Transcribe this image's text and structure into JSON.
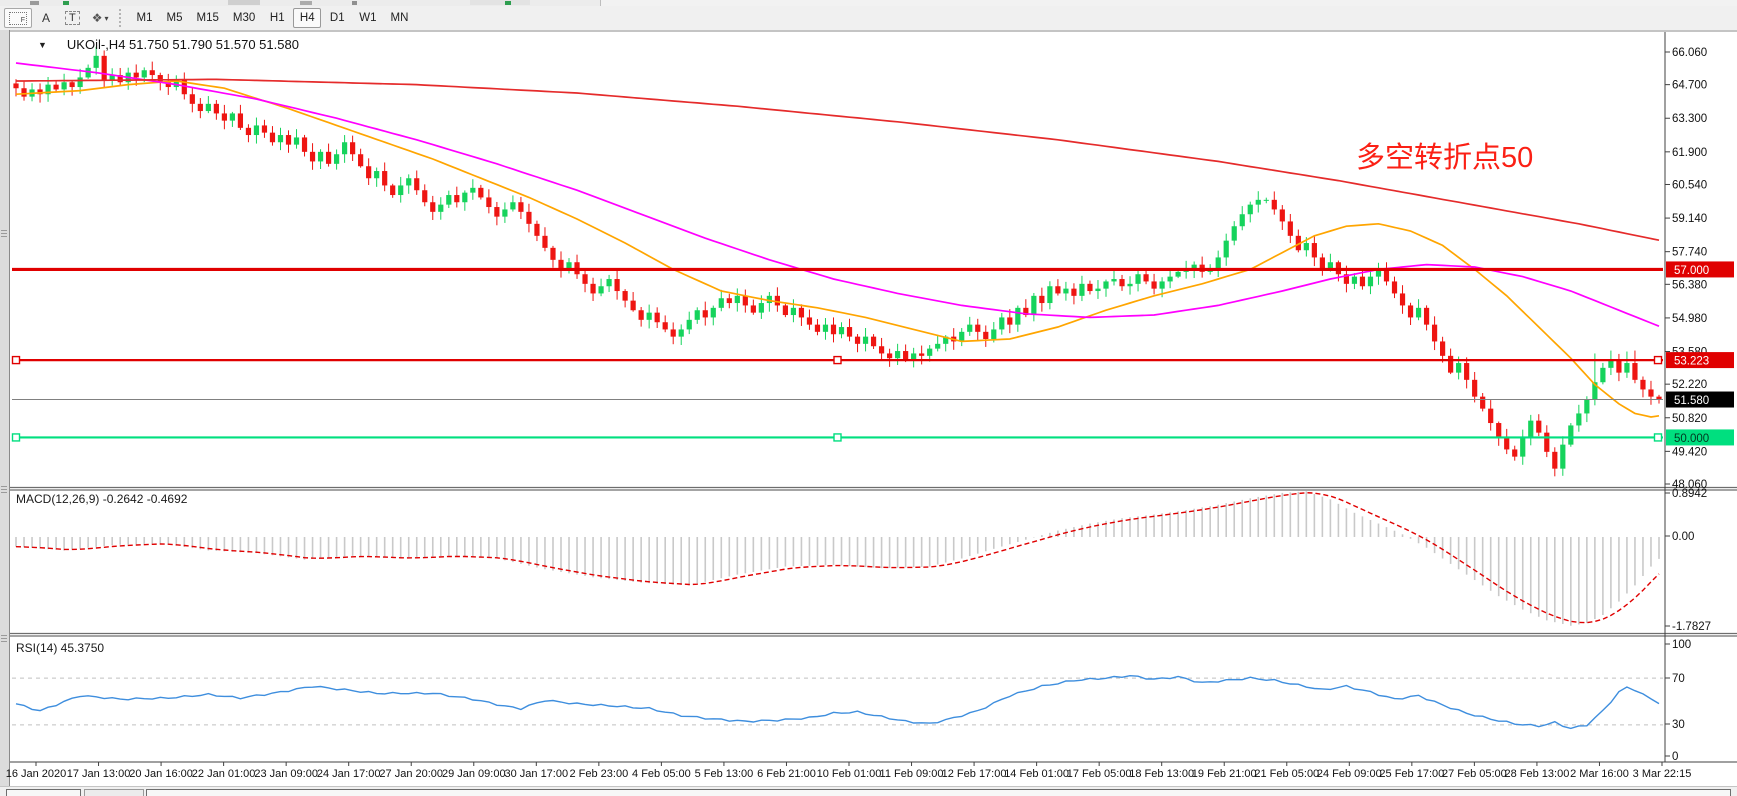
{
  "toolbar": {
    "icon_buttons": [
      {
        "name": "indicator-grid-button",
        "glyph": "F"
      },
      {
        "name": "text-label-button",
        "glyph": "A"
      },
      {
        "name": "text-box-button",
        "glyph": "T"
      },
      {
        "name": "arrange-objects-button",
        "glyph": "❖"
      }
    ],
    "dropdown_caret": "▾",
    "timeframes": [
      "M1",
      "M5",
      "M15",
      "M30",
      "H1",
      "H4",
      "D1",
      "W1",
      "MN"
    ],
    "active_timeframe": "H4"
  },
  "main_chart": {
    "collapse_glyph": "▼",
    "title": "UKOil-,H4  51.750 51.790 51.570 51.580",
    "symbol": "UKOil-",
    "period": "H4",
    "annotation": {
      "text": "多空转折点50",
      "color": "#fb2015"
    }
  },
  "indicators": {
    "macd_label": "MACD(12,26,9) -0.2642 -0.4692",
    "rsi_label": "RSI(14) 45.3750"
  },
  "chart_data": [
    {
      "type": "candlestick",
      "symbol": "UKOil-",
      "timeframe": "H4",
      "current_ohlc": {
        "open": 51.75,
        "high": 51.79,
        "low": 51.57,
        "close": 51.58
      },
      "colors": {
        "up": "#16d35c",
        "down": "#ee1512",
        "ma_fast": "#ffa500",
        "ma_mid": "#ff00ff",
        "ma_slow": "#e52b2b",
        "line_57": "#e00000",
        "line_53223": "#e00000",
        "bid_line": "#808080",
        "line_50": "#00df7f"
      },
      "y_axis_ticks": [
        "66.060",
        "64.700",
        "63.300",
        "61.900",
        "60.540",
        "59.140",
        "57.740",
        "56.380",
        "54.980",
        "53.580",
        "52.220",
        "50.820",
        "49.420",
        "48.060"
      ],
      "price_badges": [
        {
          "value": "57.000",
          "price": 57.0,
          "bg": "#e00000",
          "fg": "#ffffff"
        },
        {
          "value": "53.223",
          "price": 53.223,
          "bg": "#e00000",
          "fg": "#ffffff"
        },
        {
          "value": "51.580",
          "price": 51.58,
          "bg": "#000000",
          "fg": "#ffffff"
        },
        {
          "value": "50.000",
          "price": 50.0,
          "bg": "#00df7f",
          "fg": "#003820"
        }
      ],
      "horizontal_lines": [
        {
          "price": 57.0,
          "color": "#e00000",
          "width": 3.2,
          "handles": false
        },
        {
          "price": 53.223,
          "color": "#e00000",
          "width": 2.2,
          "handles": true
        },
        {
          "price": 51.58,
          "color": "#808080",
          "width": 1,
          "handles": false
        },
        {
          "price": 50.0,
          "color": "#00df7f",
          "width": 2.2,
          "handles": true
        }
      ],
      "closes": [
        64.55,
        64.2,
        64.5,
        64.3,
        64.7,
        64.5,
        64.8,
        64.6,
        65.0,
        65.4,
        65.9,
        64.9,
        65.1,
        64.8,
        65.2,
        65.0,
        65.3,
        65.1,
        64.8,
        64.6,
        64.9,
        64.3,
        63.9,
        63.6,
        63.9,
        63.5,
        63.2,
        63.5,
        62.9,
        62.6,
        63.0,
        62.7,
        62.3,
        62.6,
        62.2,
        62.5,
        61.9,
        61.5,
        61.9,
        61.4,
        61.8,
        62.3,
        61.8,
        61.3,
        60.8,
        61.1,
        60.5,
        60.1,
        60.5,
        60.8,
        60.3,
        59.8,
        59.4,
        59.7,
        60.1,
        59.8,
        60.2,
        60.4,
        60.0,
        59.6,
        59.2,
        59.5,
        59.8,
        59.4,
        58.9,
        58.4,
        57.9,
        57.4,
        57.0,
        57.3,
        56.8,
        56.4,
        56.0,
        56.3,
        56.6,
        56.1,
        55.7,
        55.3,
        54.9,
        55.2,
        54.8,
        54.5,
        54.2,
        54.5,
        54.9,
        55.3,
        55.0,
        55.4,
        55.8,
        55.6,
        55.9,
        55.5,
        55.2,
        55.6,
        55.9,
        55.5,
        55.1,
        55.4,
        55.0,
        54.7,
        54.4,
        54.7,
        54.3,
        54.6,
        54.2,
        53.9,
        54.2,
        53.8,
        53.5,
        53.3,
        53.6,
        53.2,
        53.5,
        53.4,
        53.7,
        53.9,
        54.2,
        54.0,
        54.4,
        54.7,
        54.4,
        54.1,
        54.5,
        55.0,
        54.7,
        55.4,
        55.1,
        55.9,
        55.6,
        56.3,
        56.0,
        56.2,
        55.9,
        56.4,
        56.1,
        56.2,
        56.5,
        56.6,
        56.3,
        56.4,
        56.8,
        56.5,
        56.2,
        56.5,
        56.7,
        56.9,
        57.0,
        57.2,
        56.9,
        57.0,
        57.5,
        58.2,
        58.8,
        59.3,
        59.7,
        59.9,
        59.9,
        59.5,
        59.0,
        58.4,
        57.8,
        58.1,
        57.5,
        57.0,
        57.3,
        56.8,
        56.4,
        56.7,
        56.3,
        56.7,
        57.0,
        56.5,
        56.0,
        55.5,
        55.0,
        55.4,
        54.7,
        54.0,
        53.4,
        52.7,
        53.1,
        52.4,
        51.7,
        51.2,
        50.6,
        50.0,
        49.5,
        49.2,
        50.0,
        50.7,
        50.2,
        49.4,
        48.7,
        49.7,
        50.5,
        51.0,
        51.6,
        52.3,
        52.9,
        53.2,
        52.7,
        53.1,
        52.4,
        52.0,
        51.7,
        51.58
      ],
      "wick_overrides": {
        "10": {
          "high": 66.28
        },
        "192": {
          "low": 48.38
        },
        "197": {
          "high": 53.5
        },
        "199": {
          "high": 53.62
        },
        "201": {
          "high": 53.58
        },
        "202": {
          "high": 53.62
        }
      },
      "moving_averages": [
        {
          "name": "ma-fast-orange",
          "color": "#ffa500",
          "points": [
            [
              0,
              64.3
            ],
            [
              8,
              64.45
            ],
            [
              14,
              64.7
            ],
            [
              20,
              64.85
            ],
            [
              26,
              64.55
            ],
            [
              34,
              63.7
            ],
            [
              40,
              63.0
            ],
            [
              46,
              62.3
            ],
            [
              52,
              61.6
            ],
            [
              58,
              60.8
            ],
            [
              64,
              60.0
            ],
            [
              70,
              59.1
            ],
            [
              76,
              58.1
            ],
            [
              82,
              57.0
            ],
            [
              88,
              56.1
            ],
            [
              94,
              55.7
            ],
            [
              100,
              55.4
            ],
            [
              106,
              55.0
            ],
            [
              112,
              54.5
            ],
            [
              118,
              54.0
            ],
            [
              124,
              54.1
            ],
            [
              130,
              54.6
            ],
            [
              136,
              55.3
            ],
            [
              142,
              55.9
            ],
            [
              148,
              56.4
            ],
            [
              154,
              57.0
            ],
            [
              158,
              57.7
            ],
            [
              162,
              58.4
            ],
            [
              166,
              58.8
            ],
            [
              170,
              58.9
            ],
            [
              174,
              58.6
            ],
            [
              178,
              58.0
            ],
            [
              182,
              57.0
            ],
            [
              186,
              55.9
            ],
            [
              190,
              54.6
            ],
            [
              194,
              53.3
            ],
            [
              197,
              52.2
            ],
            [
              200,
              51.4
            ],
            [
              202,
              51.0
            ],
            [
              204,
              50.85
            ],
            [
              206,
              50.95
            ]
          ]
        },
        {
          "name": "ma-mid-magenta",
          "color": "#ff00ff",
          "points": [
            [
              0,
              65.6
            ],
            [
              10,
              65.2
            ],
            [
              20,
              64.7
            ],
            [
              30,
              64.1
            ],
            [
              40,
              63.3
            ],
            [
              50,
              62.4
            ],
            [
              60,
              61.4
            ],
            [
              70,
              60.3
            ],
            [
              78,
              59.3
            ],
            [
              86,
              58.3
            ],
            [
              94,
              57.4
            ],
            [
              102,
              56.6
            ],
            [
              110,
              56.0
            ],
            [
              118,
              55.5
            ],
            [
              126,
              55.15
            ],
            [
              134,
              55.0
            ],
            [
              142,
              55.1
            ],
            [
              150,
              55.5
            ],
            [
              158,
              56.1
            ],
            [
              164,
              56.6
            ],
            [
              170,
              57.0
            ],
            [
              176,
              57.2
            ],
            [
              182,
              57.1
            ],
            [
              188,
              56.7
            ],
            [
              194,
              56.1
            ],
            [
              200,
              55.3
            ],
            [
              206,
              54.5
            ]
          ]
        },
        {
          "name": "ma-slow-red",
          "color": "#e52b2b",
          "points": [
            [
              0,
              64.85
            ],
            [
              25,
              64.92
            ],
            [
              50,
              64.7
            ],
            [
              70,
              64.35
            ],
            [
              90,
              63.8
            ],
            [
              110,
              63.15
            ],
            [
              130,
              62.4
            ],
            [
              150,
              61.5
            ],
            [
              165,
              60.7
            ],
            [
              180,
              59.8
            ],
            [
              195,
              58.9
            ],
            [
              206,
              58.15
            ]
          ]
        }
      ]
    },
    {
      "type": "macd_histogram",
      "title": "MACD(12,26,9)",
      "main_value": -0.2642,
      "signal_value": -0.4692,
      "axis_ticks": [
        "0.8942",
        "0.00",
        "-1.7827"
      ],
      "range": [
        -1.7827,
        0.8942
      ],
      "colors": {
        "histogram": "#c9c9c9",
        "signal": "#e00000"
      },
      "main_keypoints": [
        [
          0,
          -0.18
        ],
        [
          6,
          -0.25
        ],
        [
          12,
          -0.15
        ],
        [
          18,
          -0.12
        ],
        [
          24,
          -0.25
        ],
        [
          30,
          -0.3
        ],
        [
          36,
          -0.42
        ],
        [
          42,
          -0.35
        ],
        [
          48,
          -0.4
        ],
        [
          54,
          -0.35
        ],
        [
          60,
          -0.4
        ],
        [
          66,
          -0.6
        ],
        [
          72,
          -0.75
        ],
        [
          78,
          -0.85
        ],
        [
          84,
          -0.9
        ],
        [
          90,
          -0.7
        ],
        [
          96,
          -0.55
        ],
        [
          102,
          -0.52
        ],
        [
          108,
          -0.58
        ],
        [
          114,
          -0.55
        ],
        [
          118,
          -0.4
        ],
        [
          122,
          -0.22
        ],
        [
          126,
          -0.05
        ],
        [
          130,
          0.12
        ],
        [
          134,
          0.25
        ],
        [
          138,
          0.35
        ],
        [
          142,
          0.42
        ],
        [
          146,
          0.5
        ],
        [
          150,
          0.6
        ],
        [
          154,
          0.72
        ],
        [
          158,
          0.82
        ],
        [
          161,
          0.85
        ],
        [
          164,
          0.7
        ],
        [
          167,
          0.45
        ],
        [
          170,
          0.25
        ],
        [
          173,
          0.05
        ],
        [
          176,
          -0.2
        ],
        [
          179,
          -0.5
        ],
        [
          182,
          -0.8
        ],
        [
          185,
          -1.1
        ],
        [
          188,
          -1.35
        ],
        [
          191,
          -1.55
        ],
        [
          194,
          -1.65
        ],
        [
          196,
          -1.6
        ],
        [
          198,
          -1.45
        ],
        [
          200,
          -1.2
        ],
        [
          202,
          -0.9
        ],
        [
          204,
          -0.55
        ],
        [
          206,
          -0.2642
        ]
      ]
    },
    {
      "type": "line",
      "title": "RSI(14)",
      "current_value": 45.375,
      "axis_ticks": [
        "100",
        "70",
        "30",
        "0"
      ],
      "range": [
        0,
        100
      ],
      "levels": [
        70,
        30
      ],
      "color": "#3e8ede",
      "keypoints": [
        [
          0,
          48
        ],
        [
          3,
          42
        ],
        [
          8,
          55
        ],
        [
          13,
          52
        ],
        [
          19,
          53
        ],
        [
          24,
          56
        ],
        [
          28,
          53
        ],
        [
          33,
          58
        ],
        [
          37,
          63
        ],
        [
          41,
          60
        ],
        [
          45,
          57
        ],
        [
          52,
          57
        ],
        [
          57,
          52
        ],
        [
          61,
          46
        ],
        [
          63,
          44
        ],
        [
          66,
          51
        ],
        [
          70,
          48
        ],
        [
          75,
          46
        ],
        [
          79,
          44
        ],
        [
          83,
          38
        ],
        [
          87,
          35
        ],
        [
          91,
          33
        ],
        [
          95,
          34
        ],
        [
          99,
          36
        ],
        [
          102,
          40
        ],
        [
          105,
          41
        ],
        [
          108,
          37
        ],
        [
          111,
          33
        ],
        [
          114,
          31
        ],
        [
          117,
          36
        ],
        [
          120,
          42
        ],
        [
          124,
          55
        ],
        [
          128,
          63
        ],
        [
          132,
          68
        ],
        [
          136,
          70
        ],
        [
          139,
          72
        ],
        [
          142,
          69
        ],
        [
          145,
          71
        ],
        [
          148,
          66
        ],
        [
          151,
          68
        ],
        [
          154,
          70
        ],
        [
          157,
          68
        ],
        [
          160,
          64
        ],
        [
          163,
          60
        ],
        [
          166,
          63
        ],
        [
          169,
          58
        ],
        [
          172,
          52
        ],
        [
          175,
          55
        ],
        [
          178,
          47
        ],
        [
          181,
          40
        ],
        [
          184,
          35
        ],
        [
          187,
          31
        ],
        [
          190,
          29
        ],
        [
          192,
          32
        ],
        [
          194,
          27
        ],
        [
          196,
          30
        ],
        [
          198,
          42
        ],
        [
          200,
          58
        ],
        [
          201,
          62
        ],
        [
          202,
          60
        ],
        [
          203,
          56
        ],
        [
          204,
          52
        ],
        [
          205,
          49
        ],
        [
          206,
          45.4
        ]
      ]
    }
  ],
  "time_axis": {
    "labels": [
      "16 Jan 2020",
      "17 Jan 13:00",
      "20 Jan 16:00",
      "22 Jan 01:00",
      "23 Jan 09:00",
      "24 Jan 17:00",
      "27 Jan 20:00",
      "29 Jan 09:00",
      "30 Jan 17:00",
      "2 Feb 23:00",
      "4 Feb 05:00",
      "5 Feb 13:00",
      "6 Feb 21:00",
      "10 Feb 01:00",
      "11 Feb 09:00",
      "12 Feb 17:00",
      "14 Feb 01:00",
      "17 Feb 05:00",
      "18 Feb 13:00",
      "19 Feb 21:00",
      "21 Feb 05:00",
      "24 Feb 09:00",
      "25 Feb 17:00",
      "27 Feb 05:00",
      "28 Feb 13:00",
      "2 Mar 16:00",
      "3 Mar 22:15"
    ]
  }
}
